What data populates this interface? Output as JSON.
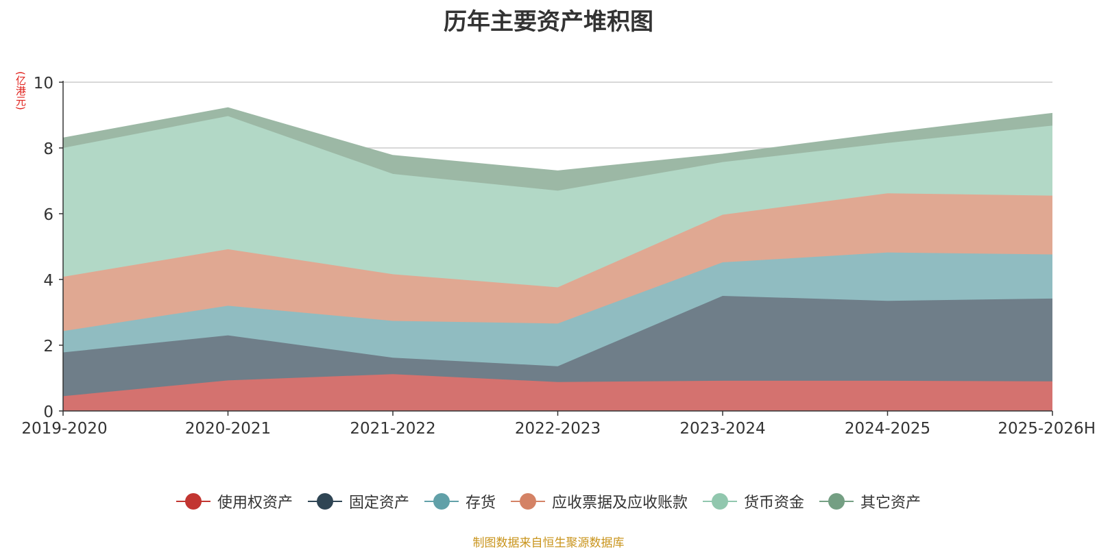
{
  "chart_data": {
    "type": "area",
    "stacked": true,
    "title": "历年主要资产堆积图",
    "ylabel": "(亿港元)",
    "xlabel": "",
    "categories": [
      "2019-2020",
      "2020-2021",
      "2021-2022",
      "2022-2023",
      "2023-2024",
      "2024-2025",
      "2025-2026H"
    ],
    "ylim": [
      0,
      10
    ],
    "yticks": [
      0,
      2,
      4,
      6,
      8,
      10
    ],
    "grid": true,
    "series": [
      {
        "name": "使用权资产",
        "color": "#c23531",
        "fill": "#d4726f",
        "values": [
          0.45,
          0.93,
          1.12,
          0.88,
          0.92,
          0.92,
          0.9
        ]
      },
      {
        "name": "固定资产",
        "color": "#2f4554",
        "fill": "#6f7e89",
        "values": [
          1.33,
          1.37,
          0.5,
          0.48,
          2.58,
          2.43,
          2.52
        ]
      },
      {
        "name": "存货",
        "color": "#61a0a8",
        "fill": "#90bcc1",
        "values": [
          0.65,
          0.9,
          1.12,
          1.3,
          1.02,
          1.47,
          1.34
        ]
      },
      {
        "name": "应收票据及应收账款",
        "color": "#d48265",
        "fill": "#e0a892",
        "values": [
          1.65,
          1.72,
          1.42,
          1.1,
          1.45,
          1.8,
          1.79
        ]
      },
      {
        "name": "货币资金",
        "color": "#91c7ae",
        "fill": "#b2d8c6",
        "values": [
          3.92,
          4.05,
          3.05,
          2.94,
          1.6,
          1.53,
          2.13
        ]
      },
      {
        "name": "其它资产",
        "color": "#749f83",
        "fill": "#9cb8a5",
        "values": [
          0.3,
          0.25,
          0.56,
          0.6,
          0.24,
          0.3,
          0.37
        ]
      }
    ]
  },
  "legend_position": "bottom",
  "source_note": "制图数据来自恒生聚源数据库"
}
